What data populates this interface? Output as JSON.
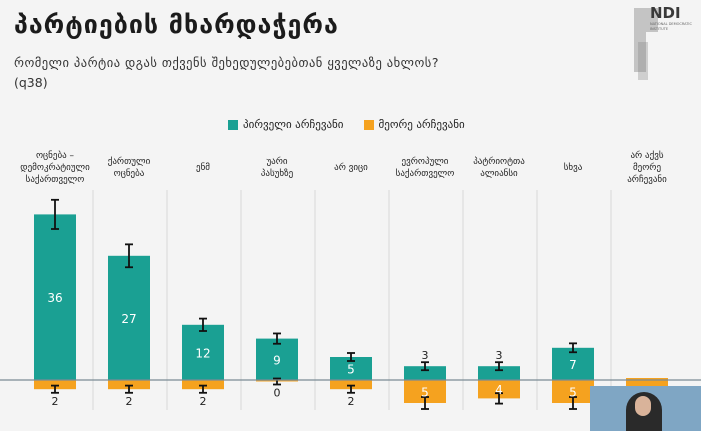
{
  "title": "პარტიების მხარდაჭერა",
  "subtitle": "რომელი პარტია დგას თქვენს შეხედულებებთან ყველაზე ახლოს?",
  "question_code": "(q38)",
  "logo": {
    "text": "NDI",
    "sub": "NATIONAL DEMOCRATIC INSTITUTE"
  },
  "colors": {
    "first": "#1aa093",
    "second": "#f5a21f"
  },
  "chart_data": {
    "type": "bar",
    "categories": [
      [
        "ოცნება –",
        "დემოკრატიული",
        "საქართველო"
      ],
      [
        "ქართული",
        "ოცნება"
      ],
      [
        "ენმ"
      ],
      [
        "უარი",
        "პასუხზე"
      ],
      [
        "არ ვიცი"
      ],
      [
        "ევროპული",
        "საქართველო"
      ],
      [
        "პატრიოტთა",
        "ალიანსი"
      ],
      [
        "სხვა"
      ],
      [
        "არ აქვს",
        "მეორე",
        "არჩევანი"
      ]
    ],
    "series": [
      {
        "name": "პირველი არჩევანი",
        "values": [
          36,
          27,
          12,
          9,
          5,
          3,
          3,
          7,
          null
        ]
      },
      {
        "name": "მეორე არჩევანი",
        "values": [
          2,
          2,
          2,
          0,
          2,
          5,
          4,
          5,
          null
        ]
      }
    ],
    "first_labels": [
      "36",
      "27",
      "12",
      "9",
      "5",
      "3",
      "3",
      "7",
      ""
    ],
    "second_labels": [
      "2",
      "2",
      "2",
      "0",
      "2",
      "5",
      "4",
      "5",
      ""
    ],
    "legend_position": "top-center",
    "grid": false
  }
}
